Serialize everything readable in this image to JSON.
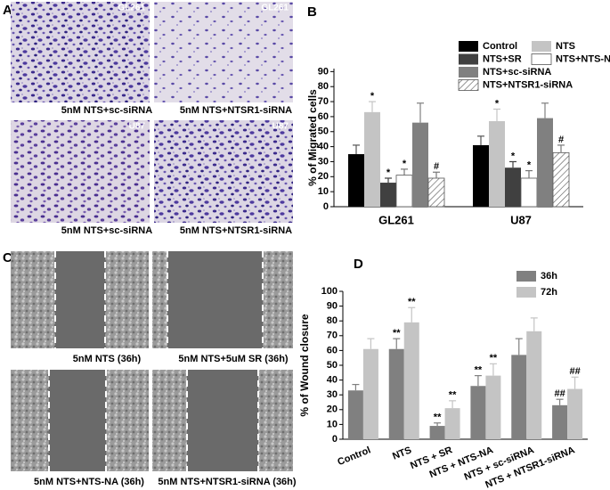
{
  "panels": {
    "a": {
      "label": "A",
      "images": [
        {
          "tag": "GL261",
          "caption": "5nM NTS+sc-siRNA"
        },
        {
          "tag": "GL261",
          "caption": "5nM NTS+NTSR1-siRNA"
        },
        {
          "tag": "U87",
          "caption": "5nM NTS+sc-siRNA"
        },
        {
          "tag": "U87",
          "caption": "5nM NTS+NTSR1-siRNA"
        }
      ]
    },
    "c": {
      "label": "C",
      "images": [
        {
          "caption": "5nM NTS (36h)"
        },
        {
          "caption": "5nM NTS+5uM SR (36h)"
        },
        {
          "caption": "5nM NTS+NTS-NA (36h)"
        },
        {
          "caption": "5nM NTS+NTSR1-siRNA (36h)"
        }
      ]
    }
  },
  "chart_data": [
    {
      "type": "bar",
      "panel_label": "B",
      "y_label": "% of Migrated cells",
      "categories": [
        "GL261",
        "U87"
      ],
      "series": [
        {
          "name": "Control",
          "color": "#000000",
          "values": [
            35,
            41
          ],
          "errors": [
            6,
            6
          ],
          "annotations": [
            null,
            null
          ]
        },
        {
          "name": "NTS",
          "color": "#c4c4c4",
          "values": [
            63,
            57
          ],
          "errors": [
            7,
            8
          ],
          "annotations": [
            "*",
            "*"
          ]
        },
        {
          "name": "NTS+SR",
          "color": "#404040",
          "values": [
            16,
            26
          ],
          "errors": [
            3,
            4
          ],
          "annotations": [
            "*",
            "*"
          ]
        },
        {
          "name": "NTS+NTS-NA",
          "color": "#ffffff",
          "values": [
            21,
            19
          ],
          "errors": [
            4,
            5
          ],
          "annotations": [
            "*",
            "*"
          ]
        },
        {
          "name": "NTS+sc-siRNA",
          "color": "#808080",
          "values": [
            56,
            59
          ],
          "errors": [
            13,
            10
          ],
          "annotations": [
            null,
            null
          ]
        },
        {
          "name": "NTS+NTSR1-siRNA",
          "color": "#ffffff",
          "pattern": "hatch",
          "values": [
            19,
            36
          ],
          "errors": [
            4,
            5
          ],
          "annotations": [
            "#",
            "#"
          ]
        }
      ],
      "ylim": [
        0,
        92
      ],
      "yticks": [
        0,
        10,
        20,
        30,
        40,
        50,
        60,
        70,
        80,
        90
      ],
      "legend": "top-right"
    },
    {
      "type": "bar",
      "panel_label": "D",
      "y_label": "% of Wound closure",
      "categories": [
        "Control",
        "NTS",
        "NTS + SR",
        "NTS + NTS-NA",
        "NTS + sc-siRNA",
        "NTS + NTSR1-siRNA"
      ],
      "series": [
        {
          "name": "36h",
          "color": "#808080",
          "values": [
            33,
            61,
            9,
            36,
            57,
            23
          ],
          "errors": [
            4,
            7,
            2,
            7,
            11,
            4
          ],
          "annotations": [
            null,
            "**",
            "**",
            "**",
            null,
            "##"
          ]
        },
        {
          "name": "72h",
          "color": "#c4c4c4",
          "values": [
            61,
            79,
            21,
            43,
            73,
            34
          ],
          "errors": [
            7,
            10,
            5,
            8,
            9,
            8
          ],
          "annotations": [
            null,
            "**",
            "**",
            "**",
            null,
            "##"
          ]
        }
      ],
      "ylim": [
        0,
        100
      ],
      "yticks": [
        0,
        10,
        20,
        30,
        40,
        50,
        60,
        70,
        80,
        90,
        100
      ],
      "legend": "top-right"
    }
  ]
}
